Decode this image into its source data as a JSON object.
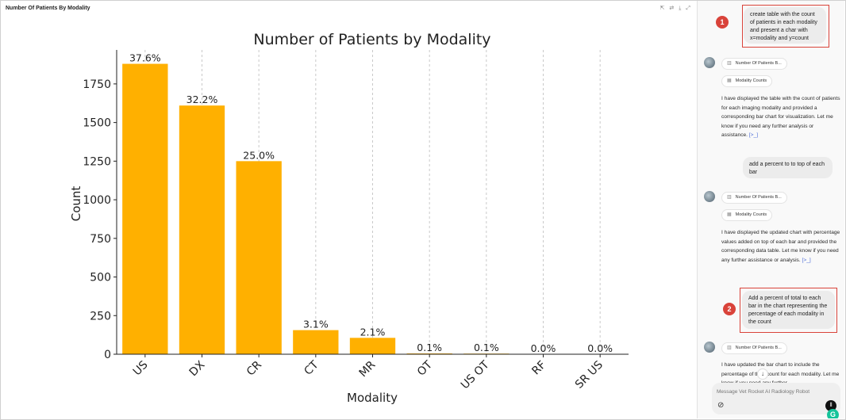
{
  "panel": {
    "title": "Number Of Patients By Modality",
    "tool_icons": [
      "expand-icon",
      "refresh-icon",
      "download-icon",
      "fullscreen-icon"
    ]
  },
  "chart_data": {
    "type": "bar",
    "title": "Number of Patients by Modality",
    "xlabel": "Modality",
    "ylabel": "Count",
    "categories": [
      "US",
      "DX",
      "CR",
      "CT",
      "MR",
      "OT",
      "US OT",
      "RF",
      "SR US"
    ],
    "values": [
      1880,
      1610,
      1250,
      156,
      106,
      5,
      4,
      1,
      1
    ],
    "labels": [
      "37.6%",
      "32.2%",
      "25.0%",
      "3.1%",
      "2.1%",
      "0.1%",
      "0.1%",
      "0.0%",
      "0.0%"
    ],
    "yticks": [
      0,
      250,
      500,
      750,
      1000,
      1250,
      1500,
      1750
    ],
    "ylim": [
      0,
      1970
    ],
    "bar_color": "#ffb000",
    "grid": "vertical dashed"
  },
  "chat": {
    "messages": [
      {
        "role": "user",
        "text": "create table with the count of patients in each modality and present a char with x=modality and y=count",
        "badge": "1"
      },
      {
        "role": "assistant",
        "chips": [
          "Number Of Patients B...",
          "Modality Counts"
        ],
        "text": "I have displayed the table with the count of patients for each imaging modality and provided a corresponding bar chart for visualization. Let me know if you need any further analysis or assistance.",
        "more": "[>_]"
      },
      {
        "role": "user",
        "text": "add a percent to to top of each bar"
      },
      {
        "role": "assistant",
        "chips": [
          "Number Of Patients B...",
          "Modality Counts"
        ],
        "text": "I have displayed the updated chart with percentage values added on top of each bar and provided the corresponding data table. Let me know if you need any further assistance or analysis.",
        "more": "[>_]"
      },
      {
        "role": "user",
        "text": "Add a percent of total to each bar in the chart representing the percentage of each modality in the count",
        "badge": "2"
      },
      {
        "role": "assistant",
        "chips": [
          "Number Of Patients B..."
        ],
        "text": "I have updated the bar chart to include the percentage of the t     count for each modality. Let me know if you need any further"
      }
    ],
    "composer_placeholder": "Message Vet Rocket AI Radiology Robot"
  }
}
